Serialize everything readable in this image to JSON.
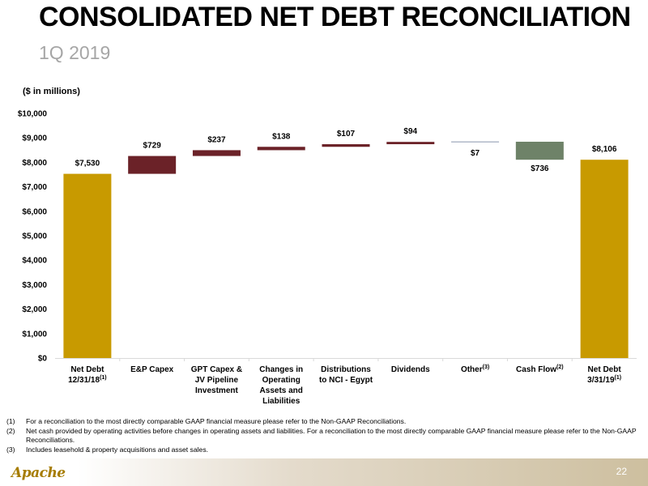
{
  "header": {
    "title": "CONSOLIDATED NET DEBT RECONCILIATION",
    "subtitle": "1Q 2019"
  },
  "chart_data": {
    "type": "bar",
    "subtype": "waterfall",
    "unit_note": "($ in millions)",
    "ylim": [
      0,
      10000
    ],
    "y_ticks": [
      "$0",
      "$1,000",
      "$2,000",
      "$3,000",
      "$4,000",
      "$5,000",
      "$6,000",
      "$7,000",
      "$8,000",
      "$9,000",
      "$10,000"
    ],
    "grid": false,
    "colors": {
      "total": "#c89a00",
      "increase": "#6b2228",
      "decrease": "#6e8268",
      "other": "#b0b8c8"
    },
    "bars": [
      {
        "lines": [
          "Net Debt",
          "12/31/18"
        ],
        "sup": "(1)",
        "kind": "total",
        "start": 0,
        "end": 7530,
        "label": "$7,530"
      },
      {
        "lines": [
          "E&P Capex"
        ],
        "sup": "",
        "kind": "increase",
        "start": 7530,
        "end": 8259,
        "label": "$729"
      },
      {
        "lines": [
          "GPT Capex &",
          "JV Pipeline",
          "Investment"
        ],
        "sup": "",
        "kind": "increase",
        "start": 8259,
        "end": 8496,
        "label": "$237"
      },
      {
        "lines": [
          "Changes in",
          "Operating",
          "Assets and",
          "Liabilities"
        ],
        "sup": "",
        "kind": "increase",
        "start": 8496,
        "end": 8634,
        "label": "$138"
      },
      {
        "lines": [
          "Distributions",
          "to NCI - Egypt"
        ],
        "sup": "",
        "kind": "increase",
        "start": 8634,
        "end": 8741,
        "label": "$107"
      },
      {
        "lines": [
          "Dividends"
        ],
        "sup": "",
        "kind": "increase",
        "start": 8741,
        "end": 8835,
        "label": "$94"
      },
      {
        "lines": [
          "Other"
        ],
        "sup": "(3)",
        "kind": "other",
        "start": 8835,
        "end": 8842,
        "label": "$7"
      },
      {
        "lines": [
          "Cash Flow"
        ],
        "sup": "(2)",
        "kind": "decrease",
        "start": 8842,
        "end": 8106,
        "label": "$736"
      },
      {
        "lines": [
          "Net Debt",
          "3/31/19"
        ],
        "sup": "(1)",
        "kind": "total",
        "start": 0,
        "end": 8106,
        "label": "$8,106"
      }
    ]
  },
  "footnotes": [
    {
      "num": "(1)",
      "text": "For a reconciliation to the most directly comparable GAAP financial measure please refer to the Non-GAAP Reconciliations."
    },
    {
      "num": "(2)",
      "text": "Net cash provided by operating activities before changes in operating assets and liabilities.  For a reconciliation to the most directly comparable GAAP financial measure please refer to the Non-GAAP Reconciliations."
    },
    {
      "num": "(3)",
      "text": "Includes leasehold & property acquisitions and asset sales."
    }
  ],
  "footer": {
    "logo_text": "Apache",
    "page_number": "22"
  }
}
